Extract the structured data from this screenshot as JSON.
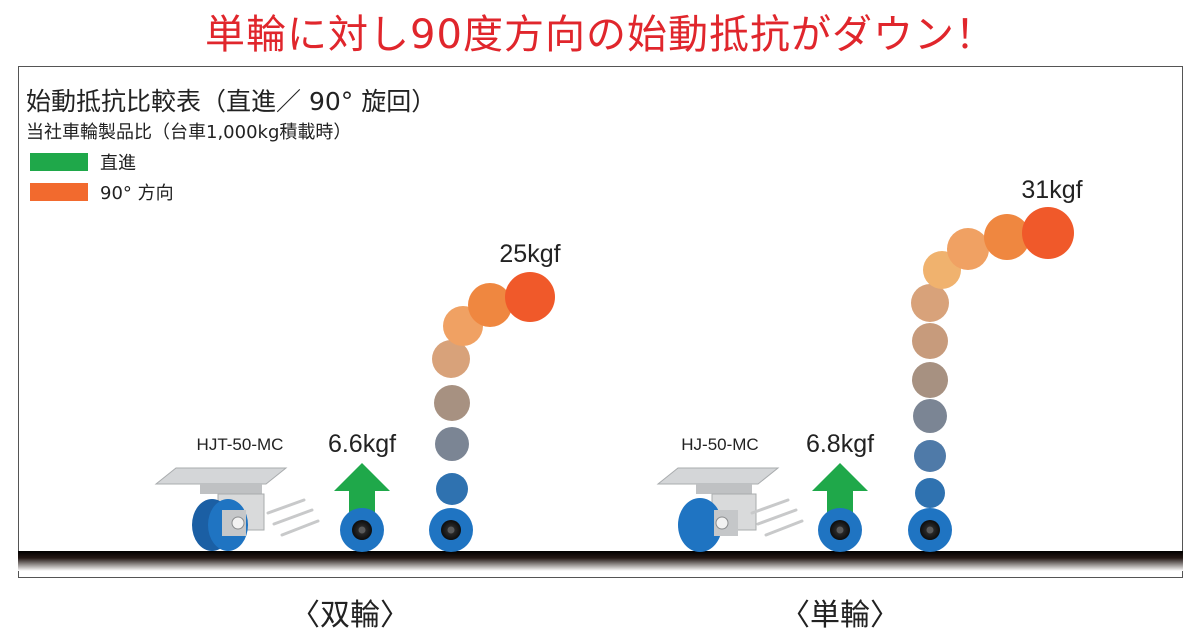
{
  "headline": "単輪に対し90度方向の始動抵抗がダウン！",
  "panel": {
    "title": "始動抵抗比較表（直進／ 90°  旋回）",
    "subtitle": "当社車輪製品比（台車1,000kg積載時）",
    "legend": [
      {
        "label": "直進",
        "color": "#1fa84a"
      },
      {
        "label": "90°  方向",
        "color": "#f26a2e"
      }
    ]
  },
  "groups": [
    {
      "section_label": "〈双輪〉",
      "model": "HJT-50-MC",
      "straight_value": "6.6kgf",
      "turn_value": "25kgf"
    },
    {
      "section_label": "〈単輪〉",
      "model": "HJ-50-MC",
      "straight_value": "6.8kgf",
      "turn_value": "31kgf"
    }
  ],
  "colors": {
    "headline": "#e0262c",
    "wheel_blue": "#1f74c2",
    "arrow_green": "#1fa84a",
    "floor": "#231815"
  }
}
